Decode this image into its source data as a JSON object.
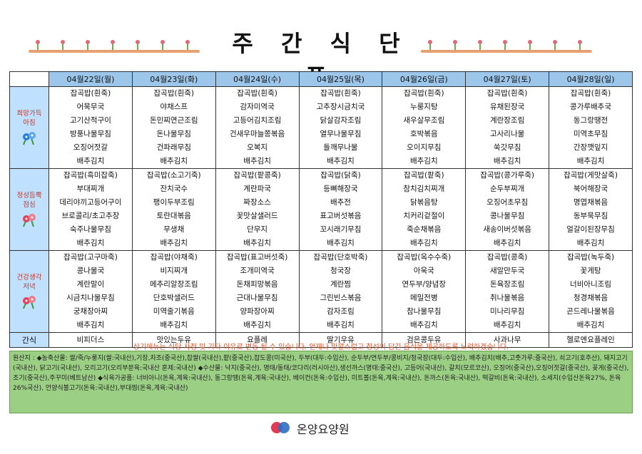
{
  "title": "주 간 식 단 표",
  "days": [
    "04월22일(월)",
    "04월23일(화)",
    "04월24일(수)",
    "04월25일(목)",
    "04월26일(금)",
    "04월27일(토)",
    "04월28일(일)"
  ],
  "meals": [
    {
      "label": "희망가득\n아침",
      "menus": [
        [
          "잡곡밥(흰죽)",
          "어묵무국",
          "고기산적구이",
          "방풍나물무침",
          "오징어젓갈",
          "배추김치"
        ],
        [
          "잡곡밥(흰죽)",
          "야채스프",
          "돈민찌연근조림",
          "돈나물무침",
          "건파래무침",
          "배추김치"
        ],
        [
          "잡곡밥(흰죽)",
          "감자미역국",
          "고등어김치조림",
          "건새우마늘쫑볶음",
          "오복지",
          "배추김치"
        ],
        [
          "잡곡밥(흰죽)",
          "고추장시금치국",
          "닭살감자조림",
          "열무나물무침",
          "들깨무나물",
          "배추김치"
        ],
        [
          "잡곡밥(흰죽)",
          "누룽지탕",
          "새우살무조림",
          "호박볶음",
          "오이지무침",
          "배추김치"
        ],
        [
          "잡곡밥(흰죽)",
          "유채된장국",
          "계란장조림",
          "고사리나물",
          "쑥갓무침",
          "배추김치"
        ],
        [
          "잡곡밥(흰죽)",
          "콩가루배추국",
          "동그랑땡전",
          "미역초무침",
          "간장깻잎지",
          "배추김치"
        ]
      ]
    },
    {
      "label": "정성듬뿍\n점심",
      "menus": [
        [
          "잡곡밥(흑미잡죽)",
          "부대찌개",
          "데리야끼고등어구이",
          "브로콜리/초고추장",
          "숙주나물무침",
          "배추김치"
        ],
        [
          "잡곡밥(소고기죽)",
          "잔치국수",
          "팽이두부조림",
          "토란대볶음",
          "무생채",
          "배추김치"
        ],
        [
          "잡곡밥(팥콩죽)",
          "계란파국",
          "짜장소스",
          "꽃맛살샐러드",
          "단무지",
          "배추김치"
        ],
        [
          "잡곡밥(닭죽)",
          "등뼈해장국",
          "배추전",
          "표고버섯볶음",
          "꼬시래기무침",
          "배추김치"
        ],
        [
          "잡곡밥(팥죽)",
          "참치김치찌개",
          "닭볶음탕",
          "치커리겉절이",
          "죽순채볶음",
          "배추김치"
        ],
        [
          "잡곡밥(콩가루죽)",
          "순두부찌개",
          "오징어초무침",
          "콩나물무침",
          "새송이버섯볶음",
          "배추김치"
        ],
        [
          "잡곡밥(게맛살죽)",
          "북어해장국",
          "명엽채볶음",
          "동부묵무침",
          "얼갈이된장무침",
          "배추김치"
        ]
      ]
    },
    {
      "label": "건강생각\n저녁",
      "menus": [
        [
          "잡곡밥(고구마죽)",
          "콩나물국",
          "계란말이",
          "시금치나물무침",
          "궁채장아찌",
          "배추김치"
        ],
        [
          "잡곡밥(야채죽)",
          "비지찌개",
          "메추리알장조림",
          "단호박샐러드",
          "미역줄기볶음",
          "배추김치"
        ],
        [
          "잡곡밥(표고버섯죽)",
          "조개미역국",
          "돈채피망볶음",
          "근대나물무침",
          "양파장아찌",
          "배추김치"
        ],
        [
          "잡곡밥(단호박죽)",
          "청국장",
          "계란찜",
          "그린빈스볶음",
          "감자조림",
          "배추김치"
        ],
        [
          "잡곡밥(옥수수죽)",
          "아욱국",
          "연두부/양념장",
          "메밀전병",
          "참나물무침",
          "배추김치"
        ],
        [
          "잡곡밥(콩죽)",
          "새알만두국",
          "돈육장조림",
          "취나물볶음",
          "미나리무침",
          "배추김치"
        ],
        [
          "잡곡밥(녹두죽)",
          "꽃게탕",
          "너비아니조림",
          "청경채볶음",
          "곤드레나물볶음",
          "배추김치"
        ]
      ]
    }
  ],
  "snack": {
    "label": "간식",
    "items": [
      "비피더스",
      "맛있는두유",
      "요플레",
      "딸기우유",
      "검은콩두유",
      "사과나무",
      "헬로엔요플레인"
    ]
  },
  "notice": "상기메뉴는 식당 사정 및 기타 이유로 변동 될 수 있습니다. 언제나 맛깔스럽고 정성이 담긴 음식을 제공하도록 노력하겠습니다.",
  "origin": "원산지 : ◆농축산물: 쌀/죽/누룽지(쌀:국내산),기장,차조(중국산),찹쌀(국내산),팥(중국산),찹도콩(미국산), 두부(대두:수입산), 순두부/연두부/콩비지/청국장(대두:수입산), 배추김치(배추,고춧가루:중국산), 쇠고기(호주산), 돼지고기(국내산), 닭고기(국내산), 오리고기(오리부분육:국내산 훈제:국내산) ◆수산물: 낙지(중국산), 명태/동태/코다리(러시아산),생선까스(명태:중국산), 고등어(국내산), 갈치(모르코산), 오징어(중국산),오징어젓갈(중국산), 꽃게(중국산), 조기(중국산),주꾸미(베트남산) ◆식육가공품: 너비아니(돈육,계육:국내산), 동그랑땡(돈육,계육:국내산), 베이컨(돈육:수입산), 미트볼(돈육,계육:국내산), 돈까스(돈육:국내산), 떡갈비(돈육:국내산), 소세지(수입산돈육27%, 돈육26%국산), 언양식불고기(돈육:국내산),부대찜(돈육,계육:국내산)",
  "org_name": "온양요양원",
  "colors": {
    "header_bg": "#9cc6ea",
    "label_bg": "#bfe0ff",
    "label_text": "#c0392b",
    "notice_text": "#e0572a",
    "origin_bg": "#9bcf84"
  },
  "icons": [
    "flower-icon",
    "logo-icon"
  ]
}
